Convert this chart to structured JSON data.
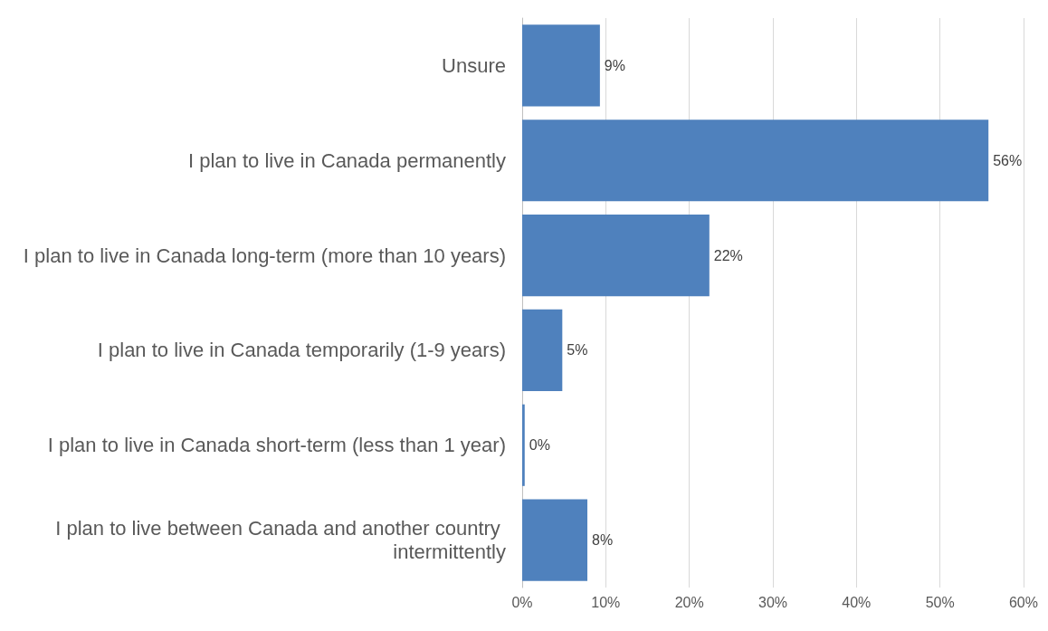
{
  "chart_data": {
    "type": "bar",
    "orientation": "horizontal",
    "categories": [
      "Unsure",
      "I plan to live in Canada permanently",
      "I plan to live in Canada long-term (more than 10 years)",
      "I plan to live in Canada temporarily (1-9 years)",
      "I plan to live in Canada short-term (less than 1 year)",
      "I plan to live between Canada and another country intermittently"
    ],
    "values": [
      9.3,
      55.8,
      22.4,
      4.8,
      0.3,
      7.8
    ],
    "value_labels": [
      "9%",
      "56%",
      "22%",
      "5%",
      "0%",
      "8%"
    ],
    "color": "#4f81bd",
    "xlim": [
      0,
      60
    ],
    "xticks": [
      {
        "value": 0,
        "label": "0%"
      },
      {
        "value": 10,
        "label": "10%"
      },
      {
        "value": 20,
        "label": "20%"
      },
      {
        "value": 30,
        "label": "30%"
      },
      {
        "value": 40,
        "label": "40%"
      },
      {
        "value": 50,
        "label": "50%"
      },
      {
        "value": 60,
        "label": "60%"
      }
    ],
    "grid": "x"
  }
}
